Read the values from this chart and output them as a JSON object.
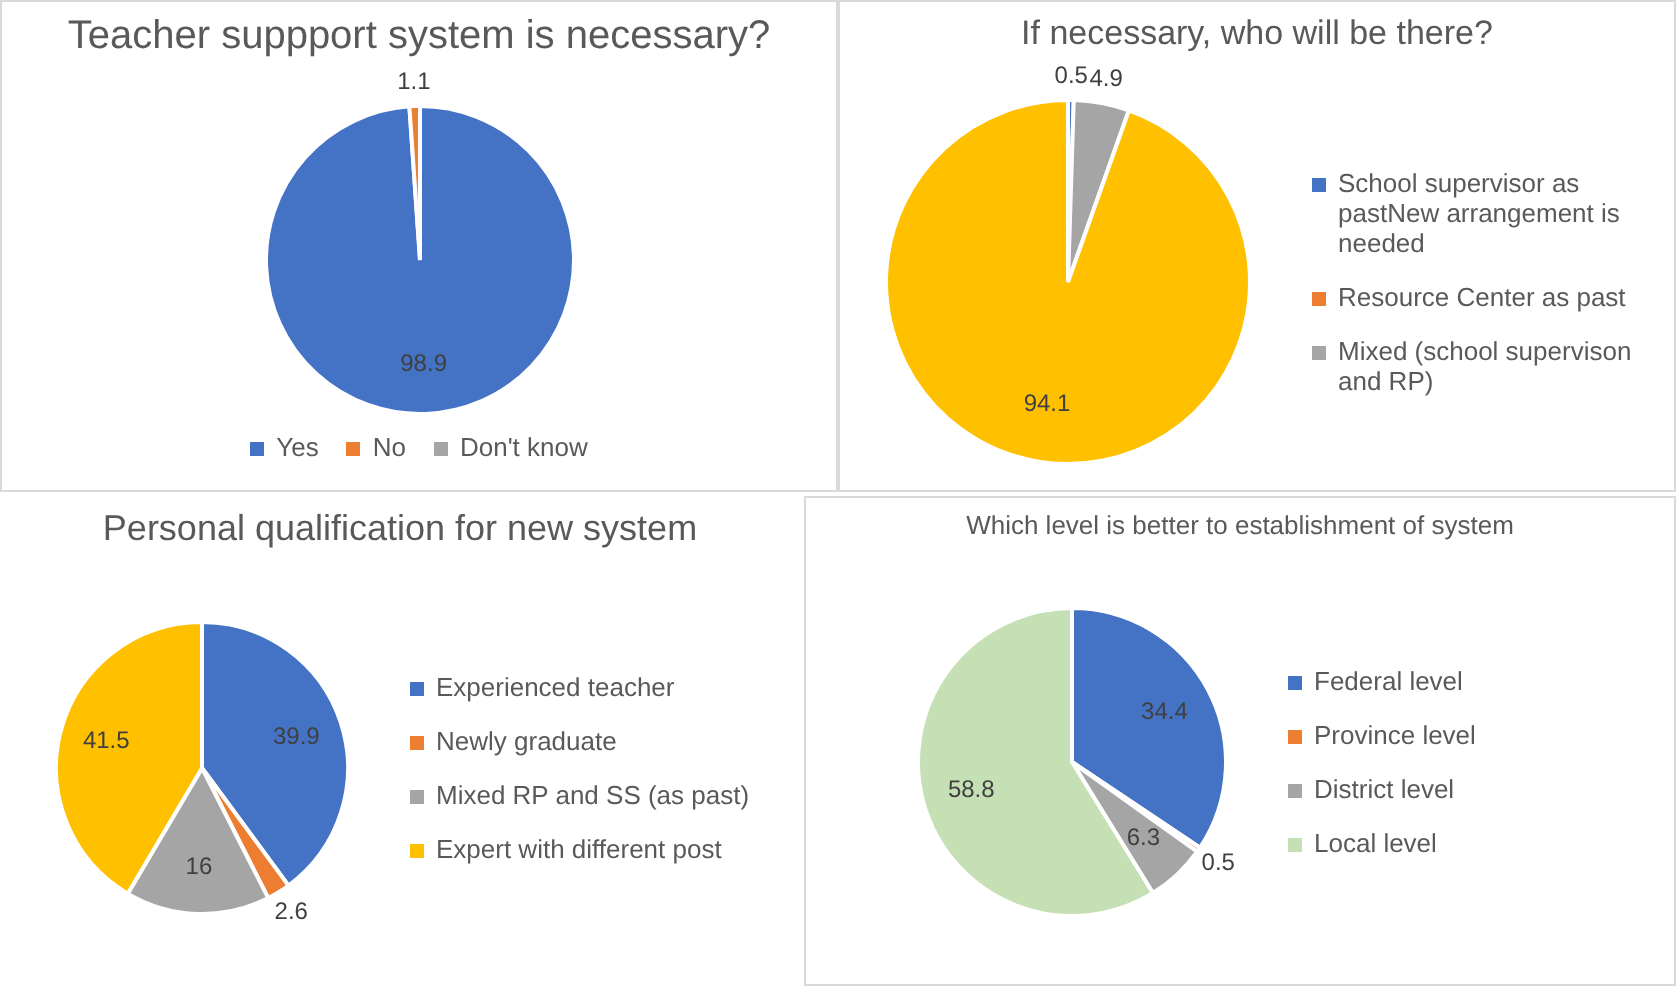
{
  "chart_data": [
    {
      "type": "pie",
      "title": "Teacher suppport system is necessary?",
      "categories": [
        "Yes",
        "No",
        "Don't know"
      ],
      "values": [
        98.9,
        1.1,
        0
      ],
      "colors": [
        "#4472c4",
        "#ed7d31",
        "#a5a5a5"
      ],
      "value_labels": [
        "98.9",
        "1.1",
        null
      ],
      "legend": "bottom"
    },
    {
      "type": "pie",
      "title": "If necessary, who will be there?",
      "categories": [
        "School supervisor as pastNew arrangement is needed",
        "Resource Center as past",
        "Mixed (school supervison and RP)",
        null
      ],
      "values": [
        0.5,
        0,
        4.9,
        94.1
      ],
      "colors": [
        "#4472c4",
        "#ed7d31",
        "#a5a5a5",
        "#ffc000"
      ],
      "value_labels": [
        "0.5",
        null,
        "4.9",
        "94.1"
      ],
      "legend": "right"
    },
    {
      "type": "pie",
      "title": "Personal qualification for new system",
      "categories": [
        "Experienced teacher",
        "Newly graduate",
        "Mixed RP and SS (as past)",
        "Expert with different post"
      ],
      "values": [
        39.9,
        2.6,
        16,
        41.5
      ],
      "colors": [
        "#4472c4",
        "#ed7d31",
        "#a5a5a5",
        "#ffc000"
      ],
      "data_labels": true,
      "legend": "right"
    },
    {
      "type": "pie",
      "title": "Which level is better to establishment of system",
      "categories": [
        "Federal level",
        "Province level",
        "District level",
        "Local level"
      ],
      "values": [
        34.4,
        0.5,
        6.3,
        58.8
      ],
      "colors": [
        "#4472c4",
        "#ed7d31",
        "#a5a5a5",
        "#c5e0b4"
      ],
      "data_labels": true,
      "legend": "right"
    }
  ]
}
